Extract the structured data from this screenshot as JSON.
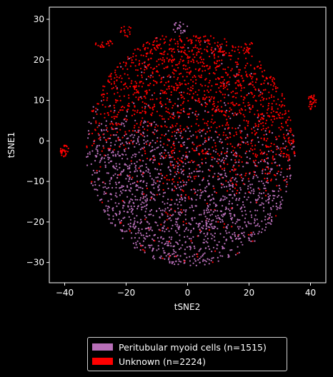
{
  "chart_data": {
    "type": "scatter",
    "title": "",
    "xlabel": "tSNE2",
    "ylabel": "tSNE1",
    "xlim": [
      -45,
      45
    ],
    "ylim": [
      -35,
      33
    ],
    "xticks": [
      -40,
      -20,
      0,
      20,
      40
    ],
    "yticks": [
      -30,
      -20,
      -10,
      0,
      10,
      20,
      30
    ],
    "grid": false,
    "legend_position": "below",
    "series": [
      {
        "name": "Peritubular myoid cells (n=1515)",
        "color": "#b86fb8"
      },
      {
        "name": "Unknown (n=2224)",
        "color": "#ff0000"
      }
    ],
    "clusters": [
      {
        "series": 1,
        "center": [
          -40,
          -2.5
        ],
        "radius": [
          1.5,
          1.5
        ],
        "count": 30
      },
      {
        "series": 1,
        "center": [
          40.5,
          9.5
        ],
        "radius": [
          1.5,
          2.0
        ],
        "count": 30
      },
      {
        "series": 0,
        "center": [
          -2.5,
          28
        ],
        "radius": [
          2.5,
          1.5
        ],
        "count": 22
      },
      {
        "series": 1,
        "center": [
          -27,
          24
        ],
        "radius": [
          3.0,
          1.0
        ],
        "count": 20
      },
      {
        "series": 1,
        "center": [
          -20,
          27
        ],
        "radius": [
          2.0,
          1.5
        ],
        "count": 15
      },
      {
        "series": 1,
        "center": [
          20,
          23
        ],
        "radius": [
          2.5,
          1.5
        ],
        "count": 15
      },
      {
        "series": 1,
        "center": [
          33.5,
          0
        ],
        "radius": [
          1.0,
          1.0
        ],
        "count": 6
      }
    ]
  }
}
